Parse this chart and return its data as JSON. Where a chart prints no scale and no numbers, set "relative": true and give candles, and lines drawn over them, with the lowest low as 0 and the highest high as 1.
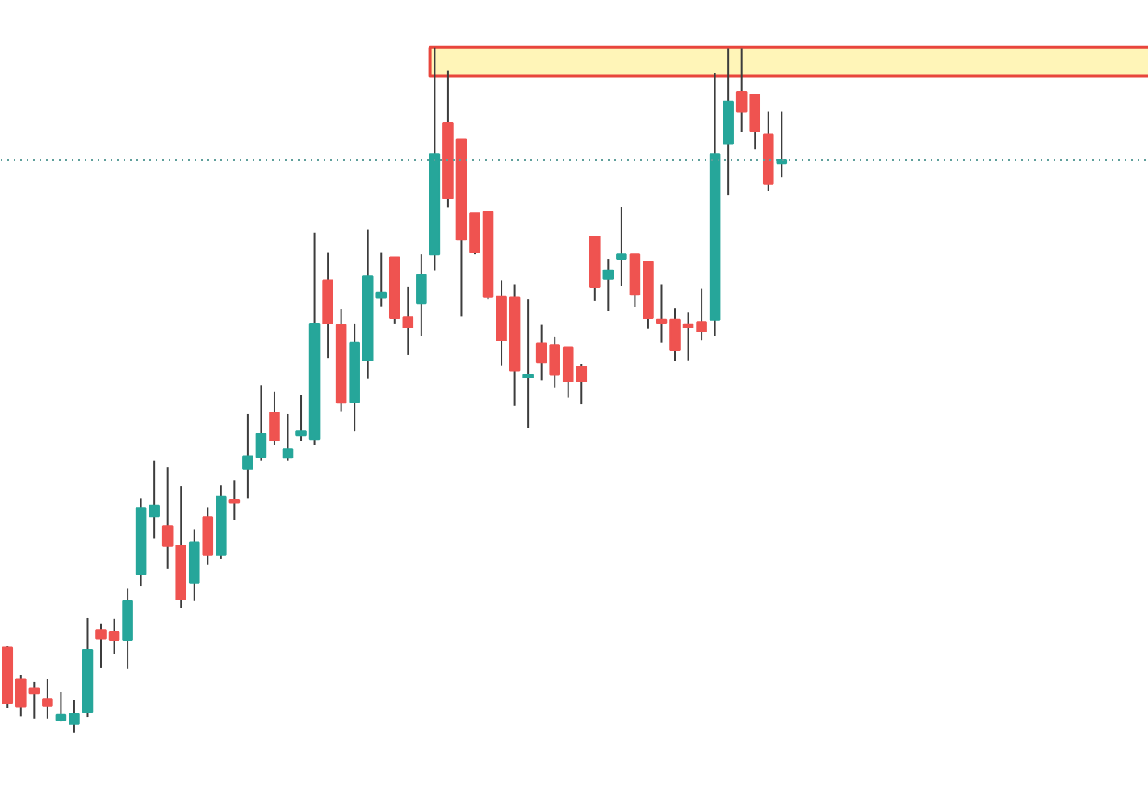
{
  "chart_data": {
    "type": "candlestick",
    "relative": true,
    "grid": false,
    "categories": [
      null,
      null,
      null,
      null,
      null,
      null,
      null,
      null,
      null,
      null,
      null,
      null,
      null,
      null,
      null,
      null,
      null,
      null,
      null,
      null,
      null,
      null,
      null,
      null,
      null,
      null,
      null,
      null,
      null,
      null,
      null,
      null,
      null,
      null,
      null,
      null,
      null,
      null,
      null,
      null,
      null,
      null,
      null,
      null,
      null,
      null,
      null,
      null,
      null,
      null,
      null,
      null,
      null,
      null,
      null,
      null,
      null,
      null,
      null,
      null,
      null,
      null,
      null,
      null,
      null,
      null,
      null,
      null,
      null,
      null,
      null,
      null,
      null,
      null,
      null,
      null,
      null,
      null,
      null,
      null,
      null,
      null,
      null,
      null,
      null,
      null
    ],
    "ohlc": [
      [
        0.124,
        0.126,
        0.036,
        0.043
      ],
      [
        0.078,
        0.084,
        0.024,
        0.038
      ],
      [
        0.064,
        0.074,
        0.02,
        0.057
      ],
      [
        0.049,
        0.078,
        0.02,
        0.039
      ],
      [
        0.018,
        0.059,
        0.016,
        0.026
      ],
      [
        0.013,
        0.047,
        0,
        0.027
      ],
      [
        0.03,
        0.167,
        0.022,
        0.121
      ],
      [
        0.149,
        0.159,
        0.094,
        0.137
      ],
      [
        0.147,
        0.166,
        0.114,
        0.135
      ],
      [
        0.135,
        0.21,
        0.093,
        0.192
      ],
      [
        0.231,
        0.342,
        0.214,
        0.328
      ],
      [
        0.315,
        0.397,
        0.283,
        0.331
      ],
      [
        0.301,
        0.387,
        0.239,
        0.272
      ],
      [
        0.273,
        0.36,
        0.182,
        0.194
      ],
      [
        0.218,
        0.296,
        0.192,
        0.277
      ],
      [
        0.314,
        0.329,
        0.245,
        0.259
      ],
      [
        0.259,
        0.361,
        0.253,
        0.344
      ],
      [
        0.339,
        0.368,
        0.31,
        0.336
      ],
      [
        0.385,
        0.465,
        0.342,
        0.403
      ],
      [
        0.402,
        0.507,
        0.397,
        0.436
      ],
      [
        0.467,
        0.497,
        0.419,
        0.426
      ],
      [
        0.401,
        0.465,
        0.397,
        0.414
      ],
      [
        0.434,
        0.493,
        0.426,
        0.44
      ],
      [
        0.428,
        0.729,
        0.419,
        0.597
      ],
      [
        0.66,
        0.701,
        0.546,
        0.597
      ],
      [
        0.595,
        0.618,
        0.469,
        0.481
      ],
      [
        0.482,
        0.597,
        0.44,
        0.569
      ],
      [
        0.543,
        0.734,
        0.516,
        0.666
      ],
      [
        0.635,
        0.701,
        0.622,
        0.642
      ],
      [
        0.694,
        0.694,
        0.597,
        0.605
      ],
      [
        0.606,
        0.65,
        0.551,
        0.591
      ],
      [
        0.626,
        0.698,
        0.579,
        0.668
      ],
      [
        0.698,
        1,
        0.674,
        0.844
      ],
      [
        0.89,
        0.966,
        0.766,
        0.78
      ],
      [
        0.866,
        0.866,
        0.607,
        0.719
      ],
      [
        0.758,
        0.758,
        0.698,
        0.701
      ],
      [
        0.76,
        0.76,
        0.632,
        0.636
      ],
      [
        0.636,
        0.66,
        0.536,
        0.572
      ],
      [
        0.635,
        0.654,
        0.477,
        0.528
      ],
      [
        0.518,
        0.632,
        0.444,
        0.522
      ],
      [
        0.568,
        0.595,
        0.514,
        0.54
      ],
      [
        0.566,
        0.577,
        0.503,
        0.522
      ],
      [
        0.562,
        0.562,
        0.489,
        0.512
      ],
      [
        0.534,
        0.538,
        0.479,
        0.512
      ],
      [
        0.724,
        0.724,
        0.63,
        0.65
      ],
      [
        0.662,
        0.691,
        0.615,
        0.675
      ],
      [
        0.691,
        0.767,
        0.652,
        0.698
      ],
      [
        0.698,
        0.698,
        0.621,
        0.639
      ],
      [
        0.687,
        0.687,
        0.589,
        0.605
      ],
      [
        0.603,
        0.654,
        0.569,
        0.598
      ],
      [
        0.603,
        0.619,
        0.542,
        0.558
      ],
      [
        0.596,
        0.613,
        0.543,
        0.591
      ],
      [
        0.599,
        0.648,
        0.573,
        0.585
      ],
      [
        0.602,
        0.962,
        0.579,
        0.844
      ],
      [
        0.859,
        0.998,
        0.784,
        0.921
      ],
      [
        0.935,
        0.998,
        0.876,
        0.906
      ],
      [
        0.931,
        0.931,
        0.851,
        0.878
      ],
      [
        0.873,
        0.906,
        0.79,
        0.801
      ],
      [
        0.831,
        0.906,
        0.811,
        0.836
      ],
      null,
      null,
      null,
      null,
      null,
      null,
      null,
      null,
      null,
      null,
      null,
      null,
      null,
      null,
      null,
      null,
      null,
      null,
      null,
      null,
      null,
      null,
      null,
      null,
      null,
      null,
      null
    ],
    "colors": [
      "#ef5350",
      "#ef5350",
      "#ef5350",
      "#ef5350",
      "#26a69a",
      "#26a69a",
      "#26a69a",
      "#ef5350",
      "#ef5350",
      "#26a69a",
      "#26a69a",
      "#26a69a",
      "#ef5350",
      "#ef5350",
      "#26a69a",
      "#ef5350",
      "#26a69a",
      "#ef5350",
      "#26a69a",
      "#26a69a",
      "#ef5350",
      "#26a69a",
      "#26a69a",
      "#26a69a",
      "#ef5350",
      "#ef5350",
      "#26a69a",
      "#26a69a",
      "#26a69a",
      "#ef5350",
      "#ef5350",
      "#26a69a",
      "#26a69a",
      "#ef5350",
      "#ef5350",
      "#ef5350",
      "#ef5350",
      "#ef5350",
      "#ef5350",
      "#26a69a",
      "#ef5350",
      "#ef5350",
      "#ef5350",
      "#ef5350",
      "#ef5350",
      "#26a69a",
      "#26a69a",
      "#ef5350",
      "#ef5350",
      "#ef5350",
      "#ef5350",
      "#ef5350",
      "#ef5350",
      "#26a69a",
      "#26a69a",
      "#ef5350",
      "#ef5350",
      "#ef5350",
      "#26a69a",
      null,
      null,
      null,
      null,
      null,
      null,
      null,
      null,
      null,
      null,
      null,
      null,
      null,
      null,
      null,
      null,
      null,
      null,
      null,
      null,
      null,
      null,
      null,
      null,
      null,
      null,
      null
    ],
    "bands": [
      {
        "axis": "y",
        "from": 0.958,
        "to": 1,
        "color": "#fff5b8"
      }
    ],
    "ref_lines": [
      {
        "axis": "y",
        "value": 0.836,
        "color": "#5e9f9b",
        "line_style": "dotted"
      }
    ]
  }
}
